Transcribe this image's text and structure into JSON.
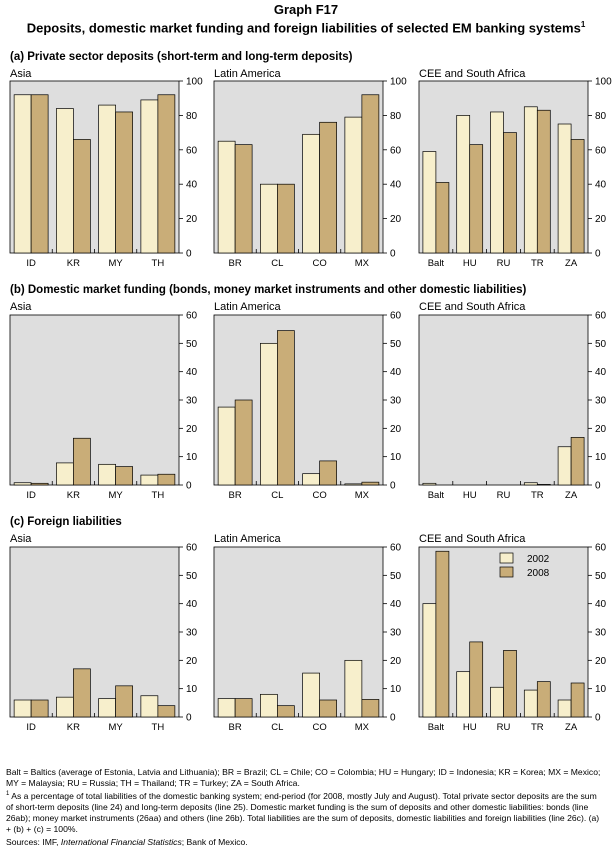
{
  "title": {
    "main": "Graph F17",
    "sub": "Deposits, domestic market funding and foreign liabilities of selected EM banking systems",
    "sup": "1"
  },
  "colors": {
    "s2002": "#f7efcc",
    "s2008": "#c9ad78",
    "panel_bg": "#dedede"
  },
  "legend": {
    "a": "2002",
    "b": "2008"
  },
  "chart_data": [
    {
      "type": "bar",
      "section": "a",
      "section_title": "(a) Private sector deposits (short-term and long-term deposits)",
      "title": "Asia",
      "categories": [
        "ID",
        "KR",
        "MY",
        "TH"
      ],
      "series": [
        {
          "name": "2002",
          "values": [
            92,
            84,
            86,
            89
          ]
        },
        {
          "name": "2008",
          "values": [
            92,
            66,
            82,
            92
          ]
        }
      ],
      "ylim": [
        0,
        100
      ],
      "yticks": [
        0,
        20,
        40,
        60,
        80,
        100
      ]
    },
    {
      "type": "bar",
      "section": "a",
      "title": "Latin America",
      "categories": [
        "BR",
        "CL",
        "CO",
        "MX"
      ],
      "series": [
        {
          "name": "2002",
          "values": [
            65,
            40,
            69,
            79
          ]
        },
        {
          "name": "2008",
          "values": [
            63,
            40,
            76,
            92
          ]
        }
      ],
      "ylim": [
        0,
        100
      ],
      "yticks": [
        0,
        20,
        40,
        60,
        80,
        100
      ]
    },
    {
      "type": "bar",
      "section": "a",
      "title": "CEE and South Africa",
      "categories": [
        "Balt",
        "HU",
        "RU",
        "TR",
        "ZA"
      ],
      "series": [
        {
          "name": "2002",
          "values": [
            59,
            80,
            82,
            85,
            75
          ]
        },
        {
          "name": "2008",
          "values": [
            41,
            63,
            70,
            83,
            66
          ]
        }
      ],
      "ylim": [
        0,
        100
      ],
      "yticks": [
        0,
        20,
        40,
        60,
        80,
        100
      ]
    },
    {
      "type": "bar",
      "section": "b",
      "section_title": "(b) Domestic market funding (bonds, money market instruments and other domestic liabilities)",
      "title": "Asia",
      "categories": [
        "ID",
        "KR",
        "MY",
        "TH"
      ],
      "series": [
        {
          "name": "2002",
          "values": [
            0.8,
            7.8,
            7.3,
            3.5
          ]
        },
        {
          "name": "2008",
          "values": [
            0.6,
            16.5,
            6.5,
            3.8
          ]
        }
      ],
      "ylim": [
        0,
        60
      ],
      "yticks": [
        0,
        10,
        20,
        30,
        40,
        50,
        60
      ]
    },
    {
      "type": "bar",
      "section": "b",
      "title": "Latin America",
      "categories": [
        "BR",
        "CL",
        "CO",
        "MX"
      ],
      "series": [
        {
          "name": "2002",
          "values": [
            27.5,
            50,
            4,
            0.4
          ]
        },
        {
          "name": "2008",
          "values": [
            30,
            54.5,
            8.5,
            1
          ]
        }
      ],
      "ylim": [
        0,
        60
      ],
      "yticks": [
        0,
        10,
        20,
        30,
        40,
        50,
        60
      ]
    },
    {
      "type": "bar",
      "section": "b",
      "title": "CEE and South Africa",
      "categories": [
        "Balt",
        "HU",
        "RU",
        "TR",
        "ZA"
      ],
      "series": [
        {
          "name": "2002",
          "values": [
            0.6,
            0,
            0,
            0.8,
            13.5
          ]
        },
        {
          "name": "2008",
          "values": [
            0,
            0,
            0,
            0.2,
            16.8
          ]
        }
      ],
      "ylim": [
        0,
        60
      ],
      "yticks": [
        0,
        10,
        20,
        30,
        40,
        50,
        60
      ]
    },
    {
      "type": "bar",
      "section": "c",
      "section_title": "(c) Foreign liabilities",
      "title": "Asia",
      "categories": [
        "ID",
        "KR",
        "MY",
        "TH"
      ],
      "series": [
        {
          "name": "2002",
          "values": [
            6,
            7,
            6.5,
            7.5
          ]
        },
        {
          "name": "2008",
          "values": [
            6,
            17,
            11,
            4
          ]
        }
      ],
      "ylim": [
        0,
        60
      ],
      "yticks": [
        0,
        10,
        20,
        30,
        40,
        50,
        60
      ]
    },
    {
      "type": "bar",
      "section": "c",
      "title": "Latin America",
      "categories": [
        "BR",
        "CL",
        "CO",
        "MX"
      ],
      "series": [
        {
          "name": "2002",
          "values": [
            6.5,
            8,
            15.5,
            20
          ]
        },
        {
          "name": "2008",
          "values": [
            6.5,
            4,
            6,
            6.2
          ]
        }
      ],
      "ylim": [
        0,
        60
      ],
      "yticks": [
        0,
        10,
        20,
        30,
        40,
        50,
        60
      ]
    },
    {
      "type": "bar",
      "section": "c",
      "title": "CEE and South Africa",
      "categories": [
        "Balt",
        "HU",
        "RU",
        "TR",
        "ZA"
      ],
      "series": [
        {
          "name": "2002",
          "values": [
            40,
            16,
            10.5,
            9.5,
            6
          ]
        },
        {
          "name": "2008",
          "values": [
            58.5,
            26.5,
            23.5,
            12.5,
            12
          ]
        }
      ],
      "ylim": [
        0,
        60
      ],
      "yticks": [
        0,
        10,
        20,
        30,
        40,
        50,
        60
      ],
      "legend": "top-right"
    }
  ],
  "notes": {
    "abbrev": "Balt = Baltics (average of Estonia, Latvia and Lithuania); BR = Brazil; CL = Chile; CO = Colombia; HU = Hungary; ID = Indonesia; KR = Korea; MX = Mexico; MY = Malaysia; RU = Russia; TH = Thailand; TR = Turkey; ZA = South Africa.",
    "footnote_mark": "1",
    "footnote": " As a percentage of total liabilities of the domestic banking system; end-period (for 2008, mostly July and August). Total private sector deposits are the sum of short-term deposits (line 24) and long-term deposits (line 25). Domestic market funding is the sum of deposits and other domestic liabilities: bonds (line 26ab); money market instruments (26aa) and others (line 26b). Total liabilities are the sum of deposits, domestic liabilities and foreign liabilities (line 26c). (a) + (b) + (c) = 100%.",
    "sources_label": "Sources: IMF, ",
    "sources_em": "International Financial Statistics",
    "sources_rest": "; Bank of Mexico."
  }
}
